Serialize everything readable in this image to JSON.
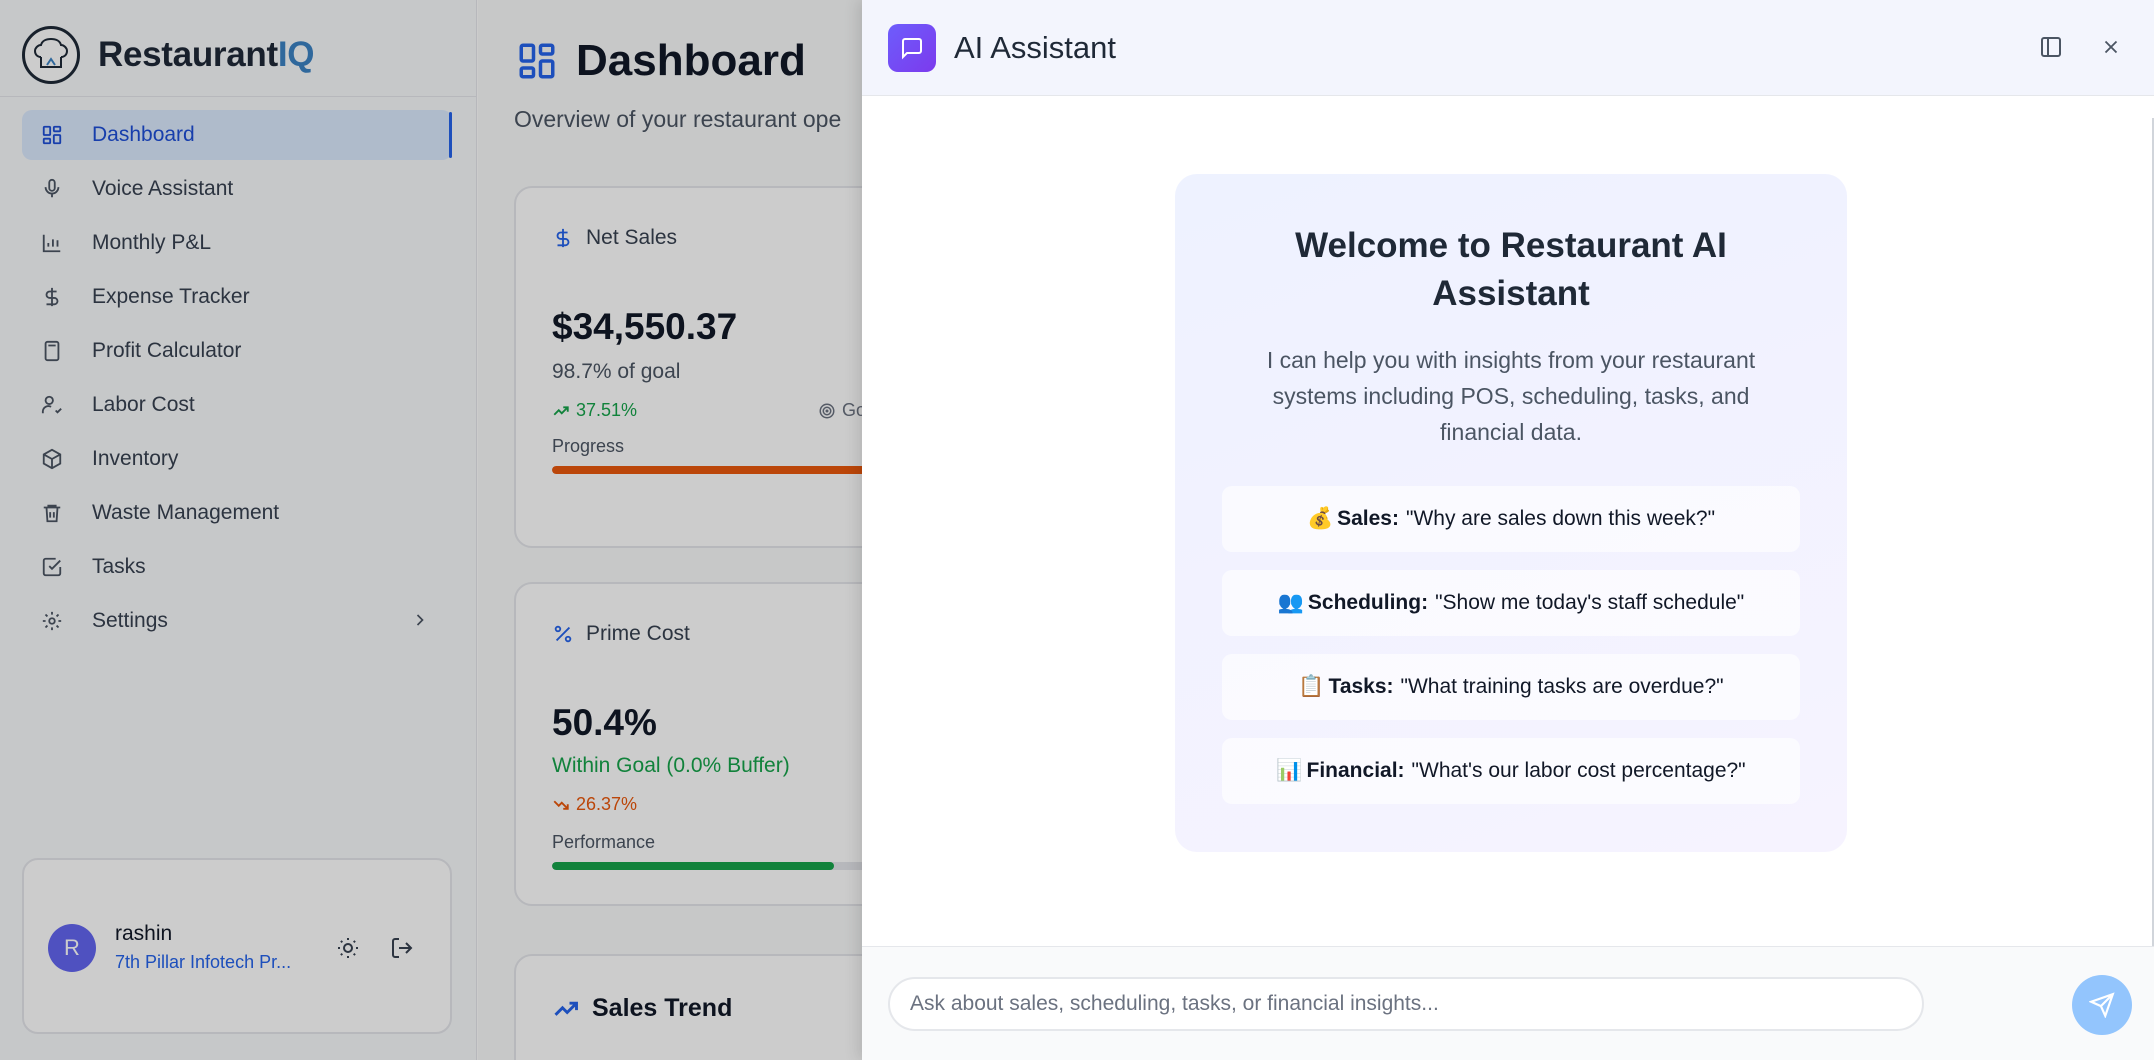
{
  "app": {
    "name_main": "Restaurant",
    "name_accent": "IQ"
  },
  "sidebar": {
    "items": [
      {
        "label": "Dashboard",
        "icon": "grid-icon",
        "active": true
      },
      {
        "label": "Voice Assistant",
        "icon": "mic-icon"
      },
      {
        "label": "Monthly P&L",
        "icon": "bar-chart-icon"
      },
      {
        "label": "Expense Tracker",
        "icon": "dollar-icon"
      },
      {
        "label": "Profit Calculator",
        "icon": "calculator-icon"
      },
      {
        "label": "Labor Cost",
        "icon": "user-check-icon"
      },
      {
        "label": "Inventory",
        "icon": "package-icon"
      },
      {
        "label": "Waste Management",
        "icon": "trash-icon"
      },
      {
        "label": "Tasks",
        "icon": "check-square-icon"
      },
      {
        "label": "Settings",
        "icon": "gear-icon"
      }
    ]
  },
  "user": {
    "initial": "R",
    "name": "rashin",
    "org": "7th Pillar Infotech Pr..."
  },
  "main": {
    "title": "Dashboard",
    "subtitle": "Overview of your restaurant ope",
    "net_sales": {
      "label": "Net Sales",
      "value": "$34,550.37",
      "goal_text": "98.7% of goal",
      "change": "37.51%",
      "goal_fragment": "Go",
      "bar_label": "Progress",
      "progress": 0.987
    },
    "prime_cost": {
      "label": "Prime Cost",
      "value": "50.4%",
      "status": "Within Goal (0.0% Buffer)",
      "change": "26.37%",
      "bar_label": "Performance",
      "progress": 0.504
    },
    "sales_trend": {
      "label": "Sales Trend"
    }
  },
  "assistant": {
    "title": "AI Assistant",
    "welcome_title": "Welcome to Restaurant AI Assistant",
    "welcome_desc": "I can help you with insights from your restaurant systems including POS, scheduling, tasks, and financial data.",
    "examples": [
      {
        "emoji": "💰",
        "category": "Sales:",
        "prompt": "\"Why are sales down this week?\""
      },
      {
        "emoji": "👥",
        "category": "Scheduling:",
        "prompt": "\"Show me today's staff schedule\""
      },
      {
        "emoji": "📋",
        "category": "Tasks:",
        "prompt": "\"What training tasks are overdue?\""
      },
      {
        "emoji": "📊",
        "category": "Financial:",
        "prompt": "\"What's our labor cost percentage?\""
      }
    ],
    "input_placeholder": "Ask about sales, scheduling, tasks, or financial insights...",
    "input_value": ""
  },
  "colors": {
    "primary": "#2563eb",
    "positive": "#16a34a",
    "warning": "#ea580c",
    "assistant_brand": "#7c3aed",
    "send_button": "#93c5fd"
  }
}
